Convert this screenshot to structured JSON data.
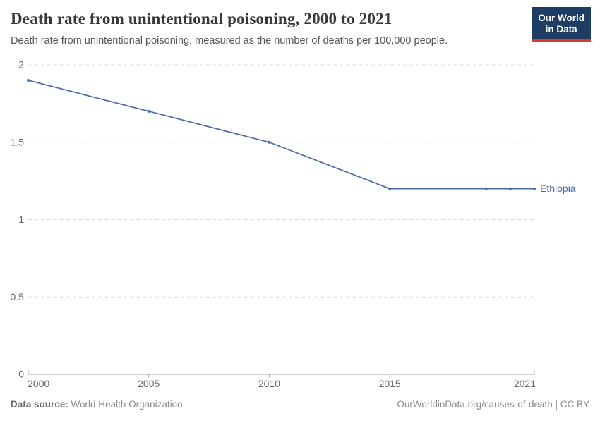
{
  "header": {
    "title": "Death rate from unintentional poisoning, 2000 to 2021",
    "subtitle": "Death rate from unintentional poisoning, measured as the number of deaths per 100,000 people."
  },
  "logo": {
    "line1": "Our World",
    "line2": "in Data"
  },
  "chart_data": {
    "type": "line",
    "title": "Death rate from unintentional poisoning, 2000 to 2021",
    "x": [
      2000,
      2005,
      2010,
      2015,
      2019,
      2020,
      2021
    ],
    "series": [
      {
        "name": "Ethiopia",
        "color": "#4a69a7",
        "values": [
          1.9,
          1.7,
          1.5,
          1.2,
          1.2,
          1.2,
          1.2
        ]
      }
    ],
    "xlabel": "",
    "ylabel": "",
    "xlim": [
      2000,
      2021
    ],
    "ylim": [
      0,
      2
    ],
    "yticks": [
      0,
      0.5,
      1,
      1.5,
      2
    ],
    "xticks": [
      2000,
      2005,
      2010,
      2015,
      2021
    ],
    "grid": "horizontal-dashed",
    "legend_position": "line-end-label"
  },
  "footer": {
    "source_label": "Data source:",
    "source_value": "World Health Organization",
    "link": "OurWorldinData.org/causes-of-death | CC BY"
  },
  "colors": {
    "accent": "#4a69a7",
    "logo_bg": "#1d3d63",
    "logo_accent": "#d63c32",
    "grid": "#dcdcdc",
    "axis": "#a5a5a5",
    "tick_text": "#666666"
  }
}
